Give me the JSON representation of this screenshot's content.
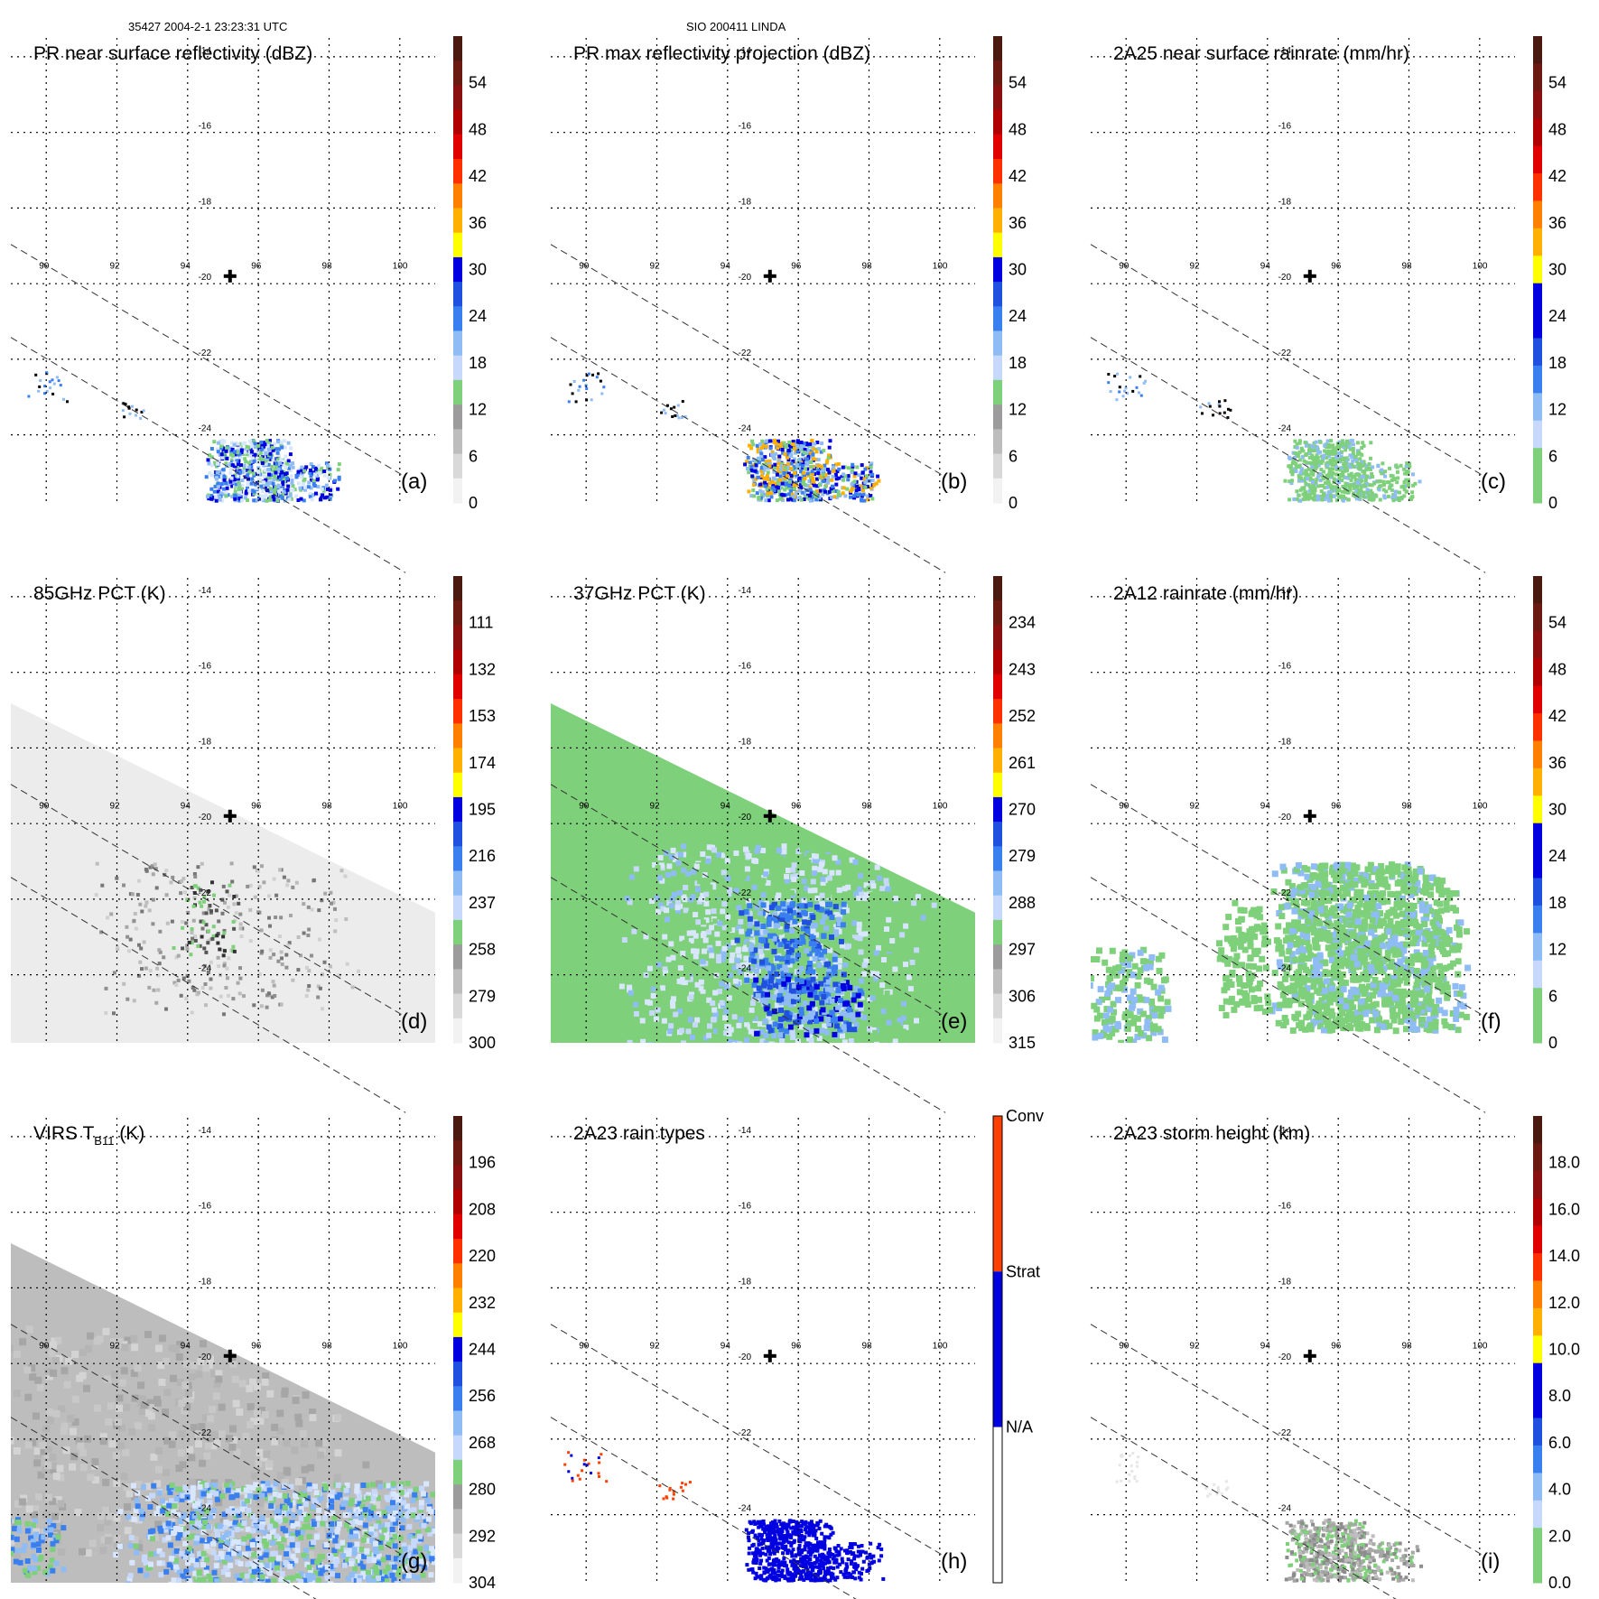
{
  "header": {
    "left": "35427 2004-2-1 23:23:31 UTC",
    "center": "SIO 200411 LINDA"
  },
  "axes": {
    "lon_labels": [
      "90",
      "92",
      "94",
      "96",
      "98",
      "100"
    ],
    "lat_labels": [
      "-14",
      "-16",
      "-18",
      "-20",
      "-22",
      "-24"
    ],
    "lon_range": [
      89,
      101
    ],
    "lat_range": [
      -13.5,
      -25.8
    ]
  },
  "marker": {
    "lon": 95.2,
    "lat": -19.8,
    "symbol": "cross-icon"
  },
  "colors": {
    "scale": [
      "#f7f7f7",
      "#bdbdbd",
      "#8c8c8c",
      "#7ed07a",
      "#d9e6ff",
      "#8fbcf5",
      "#3a7ff0",
      "#0000e0",
      "#ffff00",
      "#ffb000",
      "#ff7f00",
      "#ff3000",
      "#e00000",
      "#b00000",
      "#7a1010",
      "#4a1a10"
    ],
    "gray_scale": [
      "#ffffff",
      "#d9d9d9",
      "#a6a6a6",
      "#7ed07a",
      "#d9e6ff",
      "#8fbcf5",
      "#3a7ff0",
      "#0000e0",
      "#ffff00",
      "#ffb000",
      "#ff7f00",
      "#ff3000",
      "#e00000",
      "#b00000",
      "#7a1010",
      "#4a1a10"
    ],
    "raintype": [
      "#ffffff",
      "#0000e0",
      "#ff4000"
    ]
  },
  "panels": [
    {
      "id": "a",
      "title": "PR near surface reflectivity (dBZ)",
      "title_sub": "",
      "title_tail": "",
      "letter": "(a)",
      "colorbar_ticks": [
        "54",
        "48",
        "42",
        "36",
        "30",
        "24",
        "18",
        "12",
        "6",
        "0"
      ],
      "colorbar_type": "scale"
    },
    {
      "id": "b",
      "title": "PR max reflectivity projection (dBZ)",
      "title_sub": "",
      "title_tail": "",
      "letter": "(b)",
      "colorbar_ticks": [
        "54",
        "48",
        "42",
        "36",
        "30",
        "24",
        "18",
        "12",
        "6",
        "0"
      ],
      "colorbar_type": "scale"
    },
    {
      "id": "c",
      "title": "2A25 near surface rainrate (mm/hr)",
      "title_sub": "",
      "title_tail": "",
      "letter": "(c)",
      "colorbar_ticks": [
        "54",
        "48",
        "42",
        "36",
        "30",
        "24",
        "18",
        "12",
        "6",
        "0"
      ],
      "colorbar_type": "rain"
    },
    {
      "id": "d",
      "title": "85GHz PCT (K)",
      "title_sub": "",
      "title_tail": "",
      "letter": "(d)",
      "colorbar_ticks": [
        "111",
        "132",
        "153",
        "174",
        "195",
        "216",
        "237",
        "258",
        "279",
        "300"
      ],
      "colorbar_type": "scale"
    },
    {
      "id": "e",
      "title": "37GHz PCT (K)",
      "title_sub": "",
      "title_tail": "",
      "letter": "(e)",
      "colorbar_ticks": [
        "234",
        "243",
        "252",
        "261",
        "270",
        "279",
        "288",
        "297",
        "306",
        "315"
      ],
      "colorbar_type": "scale"
    },
    {
      "id": "f",
      "title": "2A12 rainrate (mm/hr)",
      "title_sub": "",
      "title_tail": "",
      "letter": "(f)",
      "colorbar_ticks": [
        "54",
        "48",
        "42",
        "36",
        "30",
        "24",
        "18",
        "12",
        "6",
        "0"
      ],
      "colorbar_type": "rain"
    },
    {
      "id": "g",
      "title": "VIRS T",
      "title_sub": "B11",
      "title_tail": " (K)",
      "letter": "(g)",
      "colorbar_ticks": [
        "196",
        "208",
        "220",
        "232",
        "244",
        "256",
        "268",
        "280",
        "292",
        "304"
      ],
      "colorbar_type": "scale"
    },
    {
      "id": "h",
      "title": "2A23 rain types",
      "title_sub": "",
      "title_tail": "",
      "letter": "(h)",
      "colorbar_ticks": [
        "Conv",
        "Strat",
        "N/A"
      ],
      "colorbar_type": "raintype"
    },
    {
      "id": "i",
      "title": "2A23 storm height (km)",
      "title_sub": "",
      "title_tail": "",
      "letter": "(i)",
      "colorbar_ticks": [
        "18.0",
        "16.0",
        "14.0",
        "12.0",
        "10.0",
        "8.0",
        "6.0",
        "4.0",
        "2.0",
        "0.0"
      ],
      "colorbar_type": "rain"
    }
  ]
}
